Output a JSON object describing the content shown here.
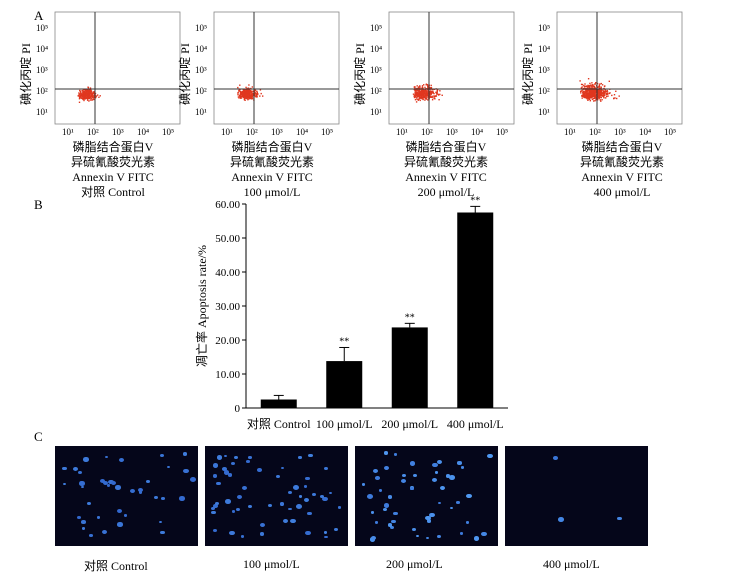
{
  "panel_labels": {
    "a": "A",
    "b": "B",
    "c": "C"
  },
  "flow": {
    "axis_x_ticks": [
      "10¹",
      "10²",
      "10³",
      "10⁴",
      "10⁵"
    ],
    "axis_y_ticks": [
      "10¹",
      "10²",
      "10³",
      "10⁴",
      "10⁵"
    ],
    "y_label": "碘化丙啶  PI",
    "x_label_1": "磷脂结合蛋白V",
    "x_label_2": "异硫氰酸荧光素",
    "x_label_3": "Annexin V FITC",
    "plots": [
      {
        "group": "对照  Control",
        "spread": 0.55,
        "density": 260
      },
      {
        "group": "100  μmol/L",
        "spread": 0.7,
        "density": 300
      },
      {
        "group": "200  μmol/L",
        "spread": 0.95,
        "density": 340
      },
      {
        "group": "400  μmol/L",
        "spread": 1.1,
        "density": 520
      }
    ],
    "dot_color": "#e0371f"
  },
  "chart_data": {
    "type": "bar",
    "categories": [
      "对照  Control",
      "100  μmol/L",
      "200  μmol/L",
      "400  μmol/L"
    ],
    "values": [
      2.5,
      13.8,
      23.7,
      57.5
    ],
    "errors": [
      1.2,
      4.0,
      1.2,
      1.8
    ],
    "significance": [
      "",
      "**",
      "**",
      "**"
    ],
    "ylabel": "凋亡率  Apoptosis rate/%",
    "yticks": [
      "0",
      "10.00",
      "20.00",
      "30.00",
      "40.00",
      "50.00",
      "60.00"
    ],
    "ylim": [
      0,
      60
    ],
    "bar_color": "#000000"
  },
  "micrographs": [
    {
      "label": "对照  Control",
      "nuclei": 40,
      "brightness": 0.55
    },
    {
      "label": "100  μmol/L",
      "nuclei": 55,
      "brightness": 0.6
    },
    {
      "label": "200  μmol/L",
      "nuclei": 50,
      "brightness": 0.85
    },
    {
      "label": "400  μmol/L",
      "nuclei": 3,
      "brightness": 0.7
    }
  ]
}
